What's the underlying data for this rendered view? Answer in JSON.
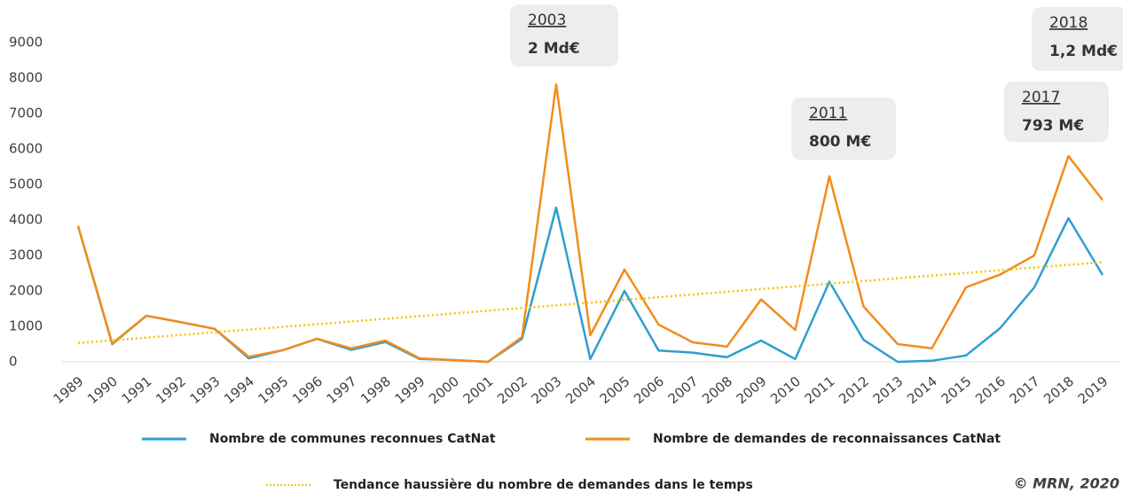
{
  "chart_data": {
    "type": "line",
    "categories": [
      "1989",
      "1990",
      "1991",
      "1992",
      "1993",
      "1994",
      "1995",
      "1996",
      "1997",
      "1998",
      "1999",
      "2000",
      "2001",
      "2002",
      "2003",
      "2004",
      "2005",
      "2006",
      "2007",
      "2008",
      "2009",
      "2010",
      "2011",
      "2012",
      "2013",
      "2014",
      "2015",
      "2016",
      "2017",
      "2018",
      "2019"
    ],
    "series": [
      {
        "name": "Nombre de communes reconnues CatNat",
        "color": "#2e9fcf",
        "values": [
          3830,
          500,
          1300,
          1120,
          930,
          100,
          330,
          650,
          340,
          560,
          80,
          50,
          0,
          650,
          4350,
          80,
          2000,
          320,
          260,
          130,
          600,
          80,
          2260,
          620,
          0,
          30,
          180,
          950,
          2100,
          4050,
          2450
        ]
      },
      {
        "name": "Nombre de demandes de reconnaissances CatNat",
        "color": "#f28c1c",
        "values": [
          3830,
          520,
          1300,
          1120,
          930,
          140,
          330,
          650,
          380,
          600,
          100,
          50,
          0,
          700,
          7820,
          750,
          2600,
          1050,
          550,
          430,
          1760,
          900,
          5230,
          1560,
          500,
          380,
          2100,
          2460,
          3000,
          5800,
          4560
        ]
      },
      {
        "name": "Tendance haussière du nombre de demandes dans le temps",
        "color": "#f2c500",
        "dashed": true,
        "values": [
          530,
          606,
          682,
          758,
          834,
          910,
          986,
          1062,
          1138,
          1214,
          1290,
          1366,
          1442,
          1518,
          1594,
          1670,
          1746,
          1822,
          1898,
          1974,
          2050,
          2126,
          2202,
          2278,
          2354,
          2430,
          2506,
          2582,
          2658,
          2734,
          2810
        ]
      }
    ],
    "ylim": [
      0,
      9000
    ],
    "yticks": [
      0,
      1000,
      2000,
      3000,
      4000,
      5000,
      6000,
      7000,
      8000,
      9000
    ],
    "annotations": [
      {
        "year": "2003",
        "text": "2 Md€"
      },
      {
        "year": "2011",
        "text": "800 M€"
      },
      {
        "year": "2017",
        "text": "793 M€"
      },
      {
        "year": "2018",
        "text": "1,2 Md€"
      }
    ],
    "source": "© MRN, 2020"
  }
}
